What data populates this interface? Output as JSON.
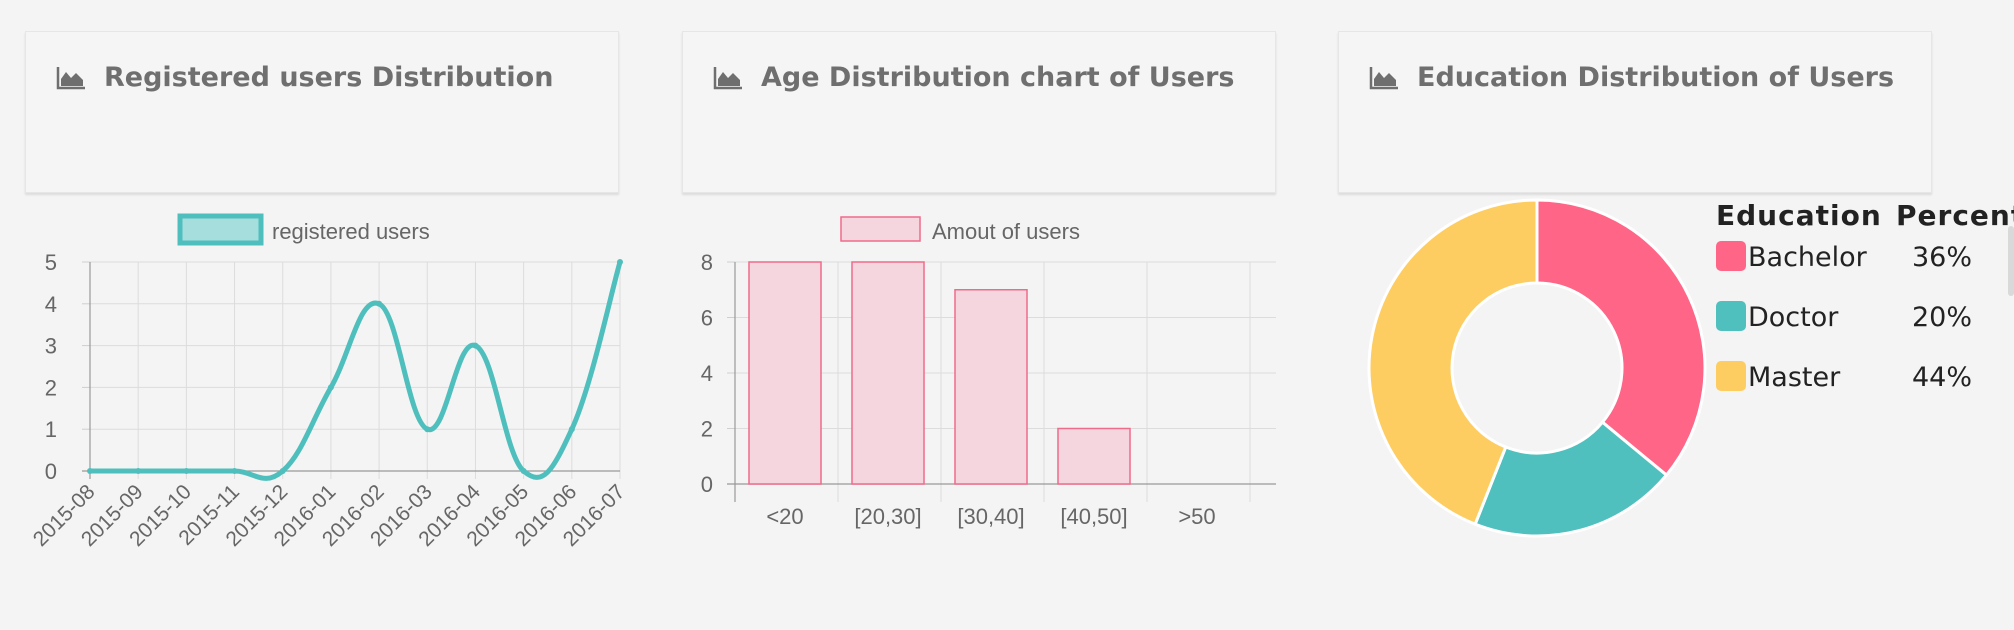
{
  "panels": [
    {
      "title": "Registered users Distribution",
      "icon": "area-chart-icon"
    },
    {
      "title": "Age Distribution chart of Users",
      "icon": "area-chart-icon"
    },
    {
      "title": "Education Distribution of Users",
      "icon": "area-chart-icon"
    }
  ],
  "chart_data": [
    {
      "type": "line",
      "legend": "registered users",
      "categories": [
        "2015-08",
        "2015-09",
        "2015-10",
        "2015-11",
        "2015-12",
        "2016-01",
        "2016-02",
        "2016-03",
        "2016-04",
        "2016-05",
        "2016-06",
        "2016-07"
      ],
      "values": [
        0,
        0,
        0,
        0,
        0,
        2,
        4,
        1,
        3,
        0,
        1,
        5
      ],
      "ylim": [
        0,
        5
      ],
      "yticks": [
        0,
        1,
        2,
        3,
        4,
        5
      ],
      "color": "#4fbfbd",
      "grid": true
    },
    {
      "type": "bar",
      "legend": "Amout of users",
      "categories": [
        "<20",
        "[20,30]",
        "[30,40]",
        "[40,50]",
        ">50"
      ],
      "values": [
        8,
        8,
        7,
        2,
        0
      ],
      "ylim": [
        0,
        8
      ],
      "yticks": [
        0,
        2,
        4,
        6,
        8
      ],
      "color": "#ef6b8a",
      "fill": "#f5d6de",
      "grid": true
    },
    {
      "type": "pie",
      "donut": true,
      "legend_header": [
        "Education",
        "Percent"
      ],
      "slices": [
        {
          "label": "Bachelor",
          "value": 36,
          "percent": "36%",
          "color": "#fe6587"
        },
        {
          "label": "Doctor",
          "value": 20,
          "percent": "20%",
          "color": "#4fc0bd"
        },
        {
          "label": "Master",
          "value": 44,
          "percent": "44%",
          "color": "#fecd61"
        }
      ]
    }
  ]
}
